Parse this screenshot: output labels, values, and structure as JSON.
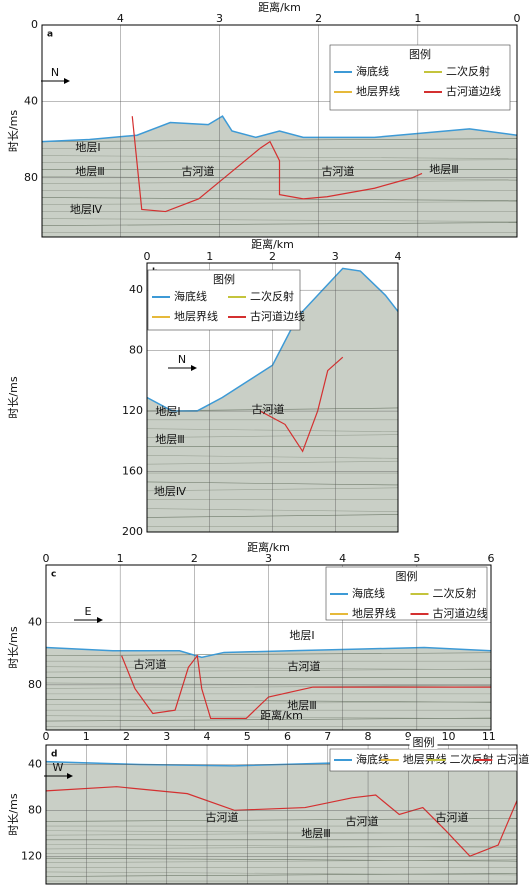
{
  "panels": [
    {
      "label": "a",
      "x_label": "距离/km",
      "y_label": "时长/ms",
      "xlim": [
        4.79,
        0
      ],
      "xticks": [
        4,
        3,
        2,
        1,
        0
      ],
      "ylim": [
        0,
        111
      ],
      "yticks": [
        0,
        40,
        80
      ],
      "grid": true,
      "legend_title": "图例",
      "legend": [
        {
          "name": "海底线",
          "color": "#3d9ad6"
        },
        {
          "name": "二次反射",
          "color": "#c4c43c"
        },
        {
          "name": "地层界线",
          "color": "#e6b93a"
        },
        {
          "name": "古河道边线",
          "color": "#d43030"
        }
      ],
      "annotations": [
        "N",
        "地层Ⅰ",
        "地层Ⅲ",
        "地层Ⅳ",
        "古河道",
        "古河道",
        "地层Ⅲ"
      ]
    },
    {
      "label": "b",
      "x_label": "距离/km",
      "y_label": "时长/ms",
      "xlim": [
        0,
        4
      ],
      "xticks": [
        0,
        1,
        2,
        3,
        4
      ],
      "ylim": [
        22,
        200
      ],
      "yticks": [
        40,
        80,
        120,
        160,
        200
      ],
      "grid": true,
      "legend_title": "图例",
      "legend": [
        {
          "name": "海底线",
          "color": "#3d9ad6"
        },
        {
          "name": "二次反射",
          "color": "#c4c43c"
        },
        {
          "name": "地层界线",
          "color": "#e6b93a"
        },
        {
          "name": "古河道边线",
          "color": "#d43030"
        }
      ],
      "annotations": [
        "N",
        "地层Ⅰ",
        "古河道",
        "地层Ⅲ",
        "地层Ⅳ"
      ]
    },
    {
      "label": "c",
      "x_label": "距离/km",
      "y_label": "时长/ms",
      "xlim": [
        0,
        6
      ],
      "xticks": [
        0,
        1,
        2,
        3,
        4,
        5,
        6
      ],
      "ylim": [
        3,
        109
      ],
      "yticks": [
        40,
        80
      ],
      "grid": true,
      "legend_title": "图例",
      "legend": [
        {
          "name": "海底线",
          "color": "#3d9ad6"
        },
        {
          "name": "二次反射",
          "color": "#c4c43c"
        },
        {
          "name": "地层界线",
          "color": "#e6b93a"
        },
        {
          "name": "古河道边线",
          "color": "#d43030"
        }
      ],
      "annotations": [
        "E",
        "地层Ⅰ",
        "古河道",
        "古河道",
        "地层Ⅲ"
      ]
    },
    {
      "label": "d",
      "x_label": "距离/km",
      "y_label": "时长/ms",
      "xlim": [
        0,
        11.7
      ],
      "xticks": [
        0,
        1,
        2,
        3,
        4,
        5,
        6,
        7,
        8,
        9,
        10,
        11
      ],
      "ylim": [
        23,
        144
      ],
      "yticks": [
        40,
        80,
        120
      ],
      "grid": true,
      "legend_title": "图例",
      "legend": [
        {
          "name": "海底线",
          "color": "#3d9ad6"
        },
        {
          "name": "地层界线",
          "color": "#e6b93a"
        },
        {
          "name": "二次反射",
          "color": "#c4c43c"
        },
        {
          "name": "古河道边线",
          "color": "#d43030"
        }
      ],
      "annotations": [
        "W",
        "古河道",
        "地层Ⅲ",
        "古河道",
        "古河道"
      ]
    }
  ]
}
